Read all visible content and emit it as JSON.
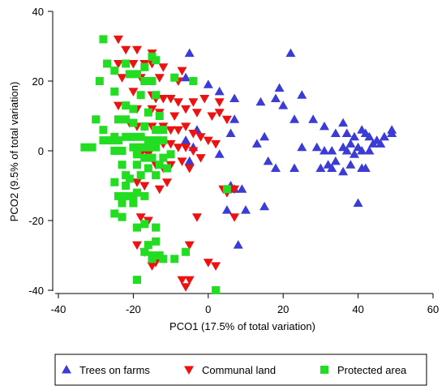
{
  "chart_data": {
    "type": "scatter",
    "xlabel": "PCO1 (17.5% of total variation)",
    "ylabel": "PCO2 (9.5% of total variation)",
    "xlim": [
      -40,
      60
    ],
    "ylim": [
      -40,
      40
    ],
    "xticks": [
      -40,
      -20,
      0,
      20,
      40,
      60
    ],
    "yticks": [
      -40,
      -20,
      0,
      20,
      40
    ],
    "grid": false,
    "legend_position": "bottom",
    "series": [
      {
        "name": "Trees on farms",
        "marker": "triangle-up",
        "color": "#3b3bd6",
        "points": [
          [
            -5,
            28
          ],
          [
            -6,
            21
          ],
          [
            0,
            19
          ],
          [
            3,
            17
          ],
          [
            7,
            15
          ],
          [
            14,
            14
          ],
          [
            19,
            18
          ],
          [
            18,
            15
          ],
          [
            20,
            13
          ],
          [
            22,
            28
          ],
          [
            25,
            16
          ],
          [
            23,
            9
          ],
          [
            28,
            9
          ],
          [
            31,
            7
          ],
          [
            34,
            5
          ],
          [
            36,
            8
          ],
          [
            37,
            5
          ],
          [
            39,
            4
          ],
          [
            41,
            6
          ],
          [
            42,
            5
          ],
          [
            43,
            4
          ],
          [
            45,
            3
          ],
          [
            47,
            4
          ],
          [
            49,
            6
          ],
          [
            49,
            5
          ],
          [
            38,
            2
          ],
          [
            40,
            1
          ],
          [
            44,
            2
          ],
          [
            46,
            2
          ],
          [
            36,
            1
          ],
          [
            29,
            1
          ],
          [
            31,
            0
          ],
          [
            25,
            1
          ],
          [
            33,
            0
          ],
          [
            37,
            0
          ],
          [
            41,
            0
          ],
          [
            43,
            0
          ],
          [
            39,
            -1
          ],
          [
            34,
            -3
          ],
          [
            32,
            -4
          ],
          [
            38,
            -4
          ],
          [
            41,
            -5
          ],
          [
            36,
            -6
          ],
          [
            42,
            -5
          ],
          [
            30,
            -5
          ],
          [
            33,
            -5
          ],
          [
            23,
            -5
          ],
          [
            18,
            -5
          ],
          [
            15,
            4
          ],
          [
            16,
            -3
          ],
          [
            13,
            2
          ],
          [
            7,
            9
          ],
          [
            6,
            5
          ],
          [
            3,
            -1
          ],
          [
            -5,
            -3
          ],
          [
            -6,
            3
          ],
          [
            -3,
            6
          ],
          [
            -4,
            1
          ],
          [
            6,
            -10
          ],
          [
            9,
            -11
          ],
          [
            7,
            -11
          ],
          [
            5,
            -17
          ],
          [
            10,
            -17
          ],
          [
            15,
            -16
          ],
          [
            8,
            -27
          ],
          [
            40,
            -15
          ]
        ]
      },
      {
        "name": "Communal land",
        "marker": "triangle-down",
        "color": "#ee1111",
        "points": [
          [
            -24,
            32
          ],
          [
            -22,
            29
          ],
          [
            -19,
            29
          ],
          [
            -15,
            28
          ],
          [
            -24,
            25
          ],
          [
            -20,
            25
          ],
          [
            -17,
            25
          ],
          [
            -15,
            25
          ],
          [
            -12,
            24
          ],
          [
            -7,
            23
          ],
          [
            -23,
            21
          ],
          [
            -18,
            21
          ],
          [
            -13,
            21
          ],
          [
            -8,
            20
          ],
          [
            -20,
            17
          ],
          [
            -15,
            16
          ],
          [
            -14,
            15
          ],
          [
            -12,
            15
          ],
          [
            -10,
            15
          ],
          [
            -8,
            14
          ],
          [
            -4,
            14
          ],
          [
            -1,
            15
          ],
          [
            3,
            14
          ],
          [
            -24,
            13
          ],
          [
            -19,
            12
          ],
          [
            -15,
            12
          ],
          [
            -13,
            11
          ],
          [
            -9,
            10
          ],
          [
            -6,
            12
          ],
          [
            -3,
            11
          ],
          [
            1,
            10
          ],
          [
            3,
            11
          ],
          [
            5,
            9
          ],
          [
            -21,
            8
          ],
          [
            -19,
            7
          ],
          [
            -17,
            7
          ],
          [
            -15,
            7
          ],
          [
            -12,
            7
          ],
          [
            -10,
            6
          ],
          [
            -8,
            6
          ],
          [
            -6,
            7
          ],
          [
            -4,
            5
          ],
          [
            -2,
            4
          ],
          [
            0,
            3
          ],
          [
            2,
            2
          ],
          [
            -16,
            3
          ],
          [
            -14,
            3
          ],
          [
            -12,
            2
          ],
          [
            -10,
            2
          ],
          [
            -8,
            1
          ],
          [
            -6,
            1
          ],
          [
            -4,
            0
          ],
          [
            -2,
            -2
          ],
          [
            -14,
            -4
          ],
          [
            -12,
            -5
          ],
          [
            -10,
            -4
          ],
          [
            -7,
            -3
          ],
          [
            -5,
            -5
          ],
          [
            -18,
            -1
          ],
          [
            -16,
            -1
          ],
          [
            -19,
            -9
          ],
          [
            -17,
            -10
          ],
          [
            -11,
            -9
          ],
          [
            -13,
            -11
          ],
          [
            4,
            -11
          ],
          [
            6,
            -11
          ],
          [
            7,
            -11
          ],
          [
            5,
            -12
          ],
          [
            -3,
            -19
          ],
          [
            7,
            -19
          ],
          [
            -18,
            -19
          ],
          [
            -16,
            -20
          ],
          [
            -19,
            -27
          ],
          [
            -17,
            -29
          ],
          [
            -5,
            -27
          ],
          [
            -15,
            -33
          ],
          [
            -14,
            -32
          ],
          [
            0,
            -32
          ],
          [
            2,
            -33
          ],
          [
            -5,
            -37
          ],
          [
            -7,
            -37
          ],
          [
            -6,
            -39
          ]
        ]
      },
      {
        "name": "Protected area",
        "marker": "square",
        "color": "#22dd22",
        "points": [
          [
            -28,
            32
          ],
          [
            -27,
            25
          ],
          [
            -22,
            25
          ],
          [
            -17,
            24
          ],
          [
            -15,
            27
          ],
          [
            -14,
            26
          ],
          [
            -25,
            23
          ],
          [
            -21,
            22
          ],
          [
            -19,
            22
          ],
          [
            -17,
            20
          ],
          [
            -15,
            20
          ],
          [
            -29,
            20
          ],
          [
            -25,
            17
          ],
          [
            -18,
            16
          ],
          [
            -14,
            16
          ],
          [
            -9,
            21
          ],
          [
            -4,
            20
          ],
          [
            -22,
            13
          ],
          [
            -20,
            12
          ],
          [
            -16,
            11
          ],
          [
            -13,
            10
          ],
          [
            -24,
            9
          ],
          [
            -22,
            9
          ],
          [
            -20,
            8
          ],
          [
            -17,
            7
          ],
          [
            -14,
            6
          ],
          [
            -12,
            6
          ],
          [
            -30,
            9
          ],
          [
            -28,
            6
          ],
          [
            -25,
            4
          ],
          [
            -22,
            4
          ],
          [
            -20,
            4
          ],
          [
            -18,
            4
          ],
          [
            -16,
            3
          ],
          [
            -14,
            3
          ],
          [
            -12,
            3
          ],
          [
            -28,
            3
          ],
          [
            -26,
            3
          ],
          [
            -24,
            3
          ],
          [
            -20,
            1
          ],
          [
            -18,
            1
          ],
          [
            -16,
            1
          ],
          [
            -14,
            1
          ],
          [
            -31,
            1
          ],
          [
            -33,
            1
          ],
          [
            -25,
            0
          ],
          [
            -23,
            0
          ],
          [
            -19,
            -1
          ],
          [
            -17,
            -2
          ],
          [
            -15,
            -2
          ],
          [
            -12,
            -2
          ],
          [
            -10,
            -1
          ],
          [
            -23,
            -4
          ],
          [
            -19,
            -4
          ],
          [
            -16,
            -5
          ],
          [
            -13,
            -4
          ],
          [
            -11,
            -5
          ],
          [
            -22,
            -7
          ],
          [
            -18,
            -7
          ],
          [
            -14,
            -7
          ],
          [
            -21,
            -8
          ],
          [
            -25,
            -9
          ],
          [
            -22,
            -10
          ],
          [
            -19,
            -12
          ],
          [
            -24,
            -13
          ],
          [
            -22,
            -13
          ],
          [
            -20,
            -13
          ],
          [
            -23,
            -15
          ],
          [
            -20,
            -15
          ],
          [
            -17,
            -13
          ],
          [
            -25,
            -18
          ],
          [
            -23,
            -19
          ],
          [
            -19,
            -22
          ],
          [
            -17,
            -21
          ],
          [
            -14,
            -22
          ],
          [
            -16,
            -27
          ],
          [
            -14,
            -26
          ],
          [
            -17,
            -29
          ],
          [
            -15,
            -30
          ],
          [
            -12,
            -31
          ],
          [
            -9,
            -31
          ],
          [
            -6,
            -29
          ],
          [
            -15,
            -31
          ],
          [
            -13,
            -30
          ],
          [
            -19,
            -37
          ],
          [
            5,
            -11
          ],
          [
            2,
            -40
          ]
        ]
      }
    ]
  }
}
